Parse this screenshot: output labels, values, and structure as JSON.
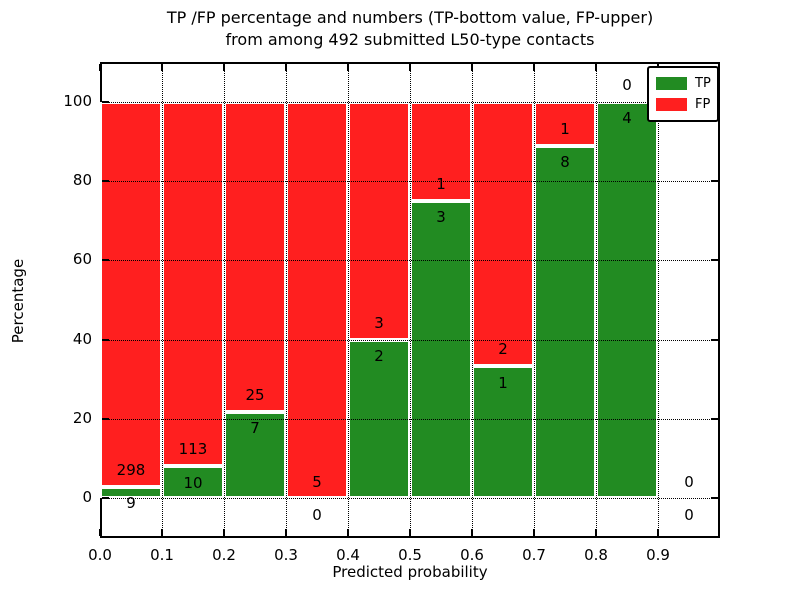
{
  "figure": {
    "title_line1": "TP /FP percentage and numbers (TP-bottom value, FP-upper)",
    "title_line2": "from among 492 submitted L50-type contacts",
    "xlabel": "Predicted probability",
    "ylabel": "Percentage"
  },
  "legend": {
    "items": [
      {
        "label": "TP",
        "color": "#228B22"
      },
      {
        "label": "FP",
        "color": "#FF1F1F"
      }
    ]
  },
  "colors": {
    "tp": "#228B22",
    "fp": "#FF1F1F",
    "bar_edge": "#FFFFFF",
    "grid": "#000000",
    "background": "#FFFFFF"
  },
  "chart_data": {
    "type": "bar",
    "stacked": true,
    "title": "TP /FP percentage and numbers (TP-bottom value, FP-upper) from among 492 submitted L50-type contacts",
    "xlabel": "Predicted probability",
    "ylabel": "Percentage",
    "xlim": [
      0.0,
      1.0
    ],
    "ylim": [
      -10,
      110
    ],
    "grid": true,
    "legend_position": "upper right",
    "x_ticks": [
      "0.0",
      "0.1",
      "0.2",
      "0.3",
      "0.4",
      "0.5",
      "0.6",
      "0.7",
      "0.8",
      "0.9"
    ],
    "y_ticks": [
      0,
      20,
      40,
      60,
      80,
      100
    ],
    "total_contacts": 492,
    "series": [
      {
        "name": "TP",
        "color": "#228B22",
        "position": "bottom"
      },
      {
        "name": "FP",
        "color": "#FF1F1F",
        "position": "top"
      }
    ],
    "bins": [
      {
        "x_start": 0.0,
        "x_end": 0.1,
        "tp_count": 9,
        "fp_count": 298,
        "tp_pct": 2.93,
        "fp_pct": 97.07
      },
      {
        "x_start": 0.1,
        "x_end": 0.2,
        "tp_count": 10,
        "fp_count": 113,
        "tp_pct": 8.13,
        "fp_pct": 91.87
      },
      {
        "x_start": 0.2,
        "x_end": 0.3,
        "tp_count": 7,
        "fp_count": 25,
        "tp_pct": 21.88,
        "fp_pct": 78.12
      },
      {
        "x_start": 0.3,
        "x_end": 0.4,
        "tp_count": 0,
        "fp_count": 5,
        "tp_pct": 0,
        "fp_pct": 100
      },
      {
        "x_start": 0.4,
        "x_end": 0.5,
        "tp_count": 2,
        "fp_count": 3,
        "tp_pct": 40,
        "fp_pct": 60
      },
      {
        "x_start": 0.5,
        "x_end": 0.6,
        "tp_count": 3,
        "fp_count": 1,
        "tp_pct": 75,
        "fp_pct": 25
      },
      {
        "x_start": 0.6,
        "x_end": 0.7,
        "tp_count": 1,
        "fp_count": 2,
        "tp_pct": 33.33,
        "fp_pct": 66.67
      },
      {
        "x_start": 0.7,
        "x_end": 0.8,
        "tp_count": 8,
        "fp_count": 1,
        "tp_pct": 88.89,
        "fp_pct": 11.11
      },
      {
        "x_start": 0.8,
        "x_end": 0.9,
        "tp_count": 4,
        "fp_count": 0,
        "tp_pct": 100,
        "fp_pct": 0
      },
      {
        "x_start": 0.9,
        "x_end": 1.0,
        "tp_count": 0,
        "fp_count": 0,
        "tp_pct": null,
        "fp_pct": null
      }
    ]
  }
}
